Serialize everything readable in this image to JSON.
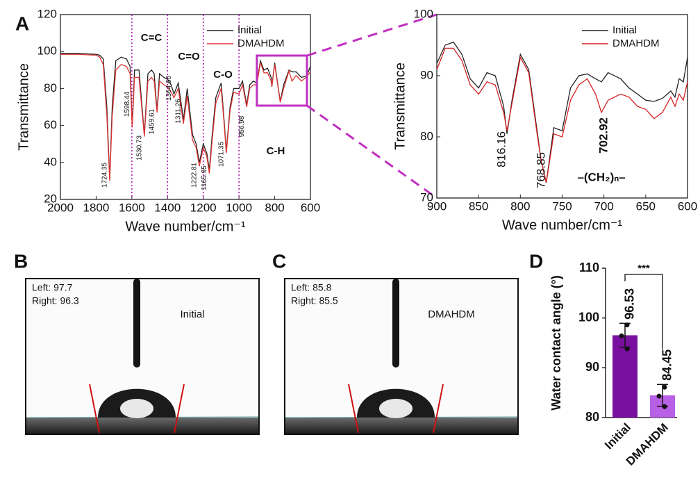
{
  "panels": [
    "A",
    "B",
    "C",
    "D"
  ],
  "chart_data": [
    {
      "type": "line",
      "xlabel": "Wave number/cm⁻¹",
      "ylabel": "Transmittance",
      "xlim": [
        2000,
        600
      ],
      "ylim": [
        20,
        120
      ],
      "xticks": [
        2000,
        1800,
        1600,
        1400,
        1200,
        1000,
        800,
        600
      ],
      "yticks": [
        20,
        40,
        60,
        80,
        100,
        120
      ],
      "x": [
        2000,
        1900,
        1800,
        1780,
        1760,
        1740,
        1724,
        1710,
        1690,
        1660,
        1630,
        1610,
        1598,
        1585,
        1560,
        1530,
        1510,
        1490,
        1475,
        1459,
        1445,
        1420,
        1400,
        1380,
        1364,
        1340,
        1311,
        1290,
        1260,
        1240,
        1222,
        1200,
        1180,
        1166,
        1150,
        1130,
        1100,
        1085,
        1071,
        1050,
        1030,
        1000,
        980,
        957,
        940,
        920,
        900,
        880,
        860,
        840,
        820,
        816,
        800,
        769,
        750,
        720,
        703,
        680,
        650,
        620,
        600
      ],
      "series": [
        {
          "name": "Initial",
          "color": "#222222",
          "values": [
            99,
            99,
            98.5,
            98,
            96,
            70,
            31,
            70,
            95,
            97,
            96,
            92,
            60,
            90,
            90,
            55,
            88,
            90,
            88,
            68,
            88,
            86,
            85,
            82,
            77,
            83,
            63,
            80,
            55,
            50,
            40,
            50,
            45,
            36,
            55,
            75,
            83,
            65,
            46,
            70,
            80,
            80,
            84,
            71,
            82,
            84,
            83,
            95,
            90,
            91,
            86,
            81,
            94,
            73,
            82,
            90,
            89,
            89,
            86,
            87,
            92
          ]
        },
        {
          "name": "DMAHDM",
          "color": "#e03535",
          "values": [
            98.5,
            98.5,
            98,
            97,
            93,
            65,
            30,
            65,
            90,
            93,
            92,
            88,
            59,
            86,
            86,
            54,
            84,
            86,
            84,
            67,
            84,
            82,
            81,
            78,
            75,
            80,
            61,
            76,
            52,
            48,
            38,
            48,
            43,
            34,
            52,
            72,
            80,
            63,
            45,
            68,
            78,
            77,
            82,
            70,
            80,
            82,
            82,
            94,
            88.5,
            88.5,
            84,
            81,
            93,
            72.5,
            80,
            89.5,
            84,
            87,
            84,
            86.5,
            89
          ]
        }
      ],
      "vlines": [
        1600,
        1400,
        1200,
        1000
      ],
      "vline_color": "#b01ab0",
      "annotations": [
        {
          "text": "1724.35",
          "x": 1724.35
        },
        {
          "text": "1598.44",
          "x": 1598.44
        },
        {
          "text": "1530.73",
          "x": 1530.73
        },
        {
          "text": "1459.61",
          "x": 1459.61
        },
        {
          "text": "1364.60",
          "x": 1364.6
        },
        {
          "text": "1311.26",
          "x": 1311.26
        },
        {
          "text": "1222.81",
          "x": 1222.81
        },
        {
          "text": "1165.95",
          "x": 1165.95
        },
        {
          "text": "1071.35",
          "x": 1071.35
        },
        {
          "text": "956.98",
          "x": 956.98
        }
      ],
      "region_labels": [
        "C=C",
        "C=O",
        "C-O",
        "C-H"
      ]
    },
    {
      "type": "line",
      "xlabel": "Wave number/cm⁻¹",
      "ylabel": "Transmittance",
      "xlim": [
        900,
        600
      ],
      "ylim": [
        70,
        100
      ],
      "xticks": [
        900,
        850,
        800,
        750,
        700,
        650,
        600
      ],
      "yticks": [
        70,
        80,
        90,
        100
      ],
      "x": [
        900,
        890,
        880,
        870,
        860,
        850,
        840,
        830,
        820,
        816,
        810,
        800,
        790,
        780,
        775,
        769,
        760,
        750,
        740,
        730,
        720,
        710,
        703,
        695,
        680,
        670,
        660,
        650,
        640,
        630,
        620,
        615,
        610,
        605,
        600
      ],
      "series": [
        {
          "name": "Initial",
          "color": "#222222",
          "values": [
            92,
            95,
            95.5,
            93.5,
            89.5,
            88,
            90.5,
            90,
            85,
            80.5,
            86,
            93.5,
            91,
            81,
            76,
            72.5,
            81.5,
            81,
            88,
            90,
            90.3,
            89.5,
            89,
            90.5,
            89.5,
            88,
            87,
            86,
            85.8,
            86.3,
            87.5,
            86.5,
            89.5,
            89,
            93
          ]
        },
        {
          "name": "DMAHDM",
          "color": "#d42020",
          "values": [
            91,
            94.5,
            94.5,
            92.5,
            88.5,
            87,
            89,
            88.5,
            84,
            81,
            85.5,
            93,
            90.5,
            80.5,
            76,
            72.5,
            80.5,
            80,
            86,
            88.5,
            89.5,
            87,
            84,
            86,
            87,
            86.5,
            85,
            84.5,
            83,
            84,
            86.5,
            85,
            87,
            86,
            89
          ]
        }
      ],
      "annotations": [
        {
          "text": "816.16",
          "x": 816.16
        },
        {
          "text": "768.85",
          "x": 768.85
        },
        {
          "text": "702.92",
          "x": 702.92,
          "color": "#e02020"
        }
      ],
      "formula": "–(CH₂)ₙ–"
    },
    {
      "type": "bar",
      "ylabel": "Water contact angle (°)",
      "categories": [
        "Initial",
        "DMAHDM"
      ],
      "values": [
        96.53,
        84.45
      ],
      "errors": [
        2.4,
        2.2
      ],
      "points": [
        [
          98.6,
          96.4,
          93.8
        ],
        [
          86.1,
          84.3,
          82.2
        ]
      ],
      "colors": [
        "#7a10a0",
        "#b860e6"
      ],
      "ylim": [
        80,
        110
      ],
      "yticks": [
        80,
        90,
        100,
        110
      ],
      "significance": "***"
    }
  ],
  "photos": [
    {
      "left": "Left: 97.7",
      "right": "Right: 96.3",
      "label": "Initial"
    },
    {
      "left": "Left: 85.8",
      "right": "Right: 85.5",
      "label": "DMAHDM"
    }
  ]
}
